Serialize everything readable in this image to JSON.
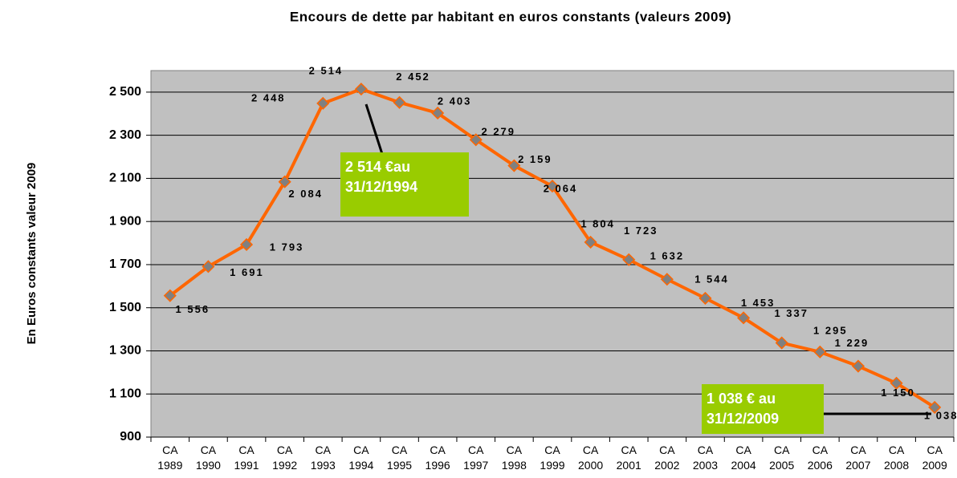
{
  "chart_data": {
    "type": "line",
    "title": "Encours de dette par habitant en euros constants (valeurs 2009)",
    "y_label": "En Euros constants valeur 2009",
    "categories": [
      "CA\n1989",
      "CA\n1990",
      "CA\n1991",
      "CA\n1992",
      "CA\n1993",
      "CA\n1994",
      "CA\n1995",
      "CA\n1996",
      "CA\n1997",
      "CA\n1998",
      "CA\n1999",
      "CA\n2000",
      "CA\n2001",
      "CA\n2002",
      "CA\n2003",
      "CA\n2004",
      "CA\n2005",
      "CA\n2006",
      "CA\n2007",
      "CA\n2008",
      "CA\n2009"
    ],
    "series": [
      {
        "name": "Encours de dette par habitant",
        "color": "#ff6600",
        "marker_color": "#808080",
        "values": [
          1556,
          1691,
          1793,
          2084,
          2448,
          2514,
          2452,
          2403,
          2279,
          2159,
          2064,
          1804,
          1723,
          1632,
          1544,
          1453,
          1337,
          1295,
          1229,
          1150,
          1038
        ],
        "value_labels": [
          "1 556",
          "1 691",
          "1 793",
          "2 084",
          "2 448",
          "2 514",
          "2 452",
          "2 403",
          "2 279",
          "2 159",
          "2 064",
          "1 804",
          "1 723",
          "1 632",
          "1 544",
          "1 453",
          "1 337",
          "1 295",
          "1 229",
          "1 150",
          "1 038"
        ]
      }
    ],
    "ylim": [
      900,
      2600
    ],
    "yticks": [
      {
        "value": 900,
        "label": "900"
      },
      {
        "value": 1100,
        "label": "1 100"
      },
      {
        "value": 1300,
        "label": "1 300"
      },
      {
        "value": 1500,
        "label": "1 500"
      },
      {
        "value": 1700,
        "label": "1 700"
      },
      {
        "value": 1900,
        "label": "1 900"
      },
      {
        "value": 2100,
        "label": "2 100"
      },
      {
        "value": 2300,
        "label": "2 300"
      },
      {
        "value": 2500,
        "label": "2 500"
      }
    ],
    "grid": true,
    "annotations": [
      "2 514 €au\n31/12/1994",
      "1 038 € au\n31/12/2009"
    ]
  }
}
